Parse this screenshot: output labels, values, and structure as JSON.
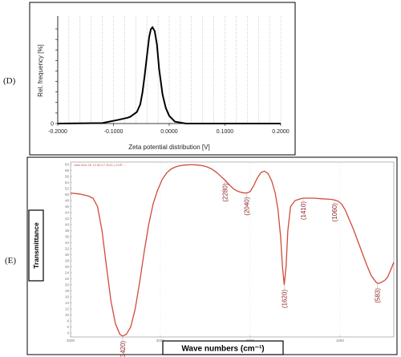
{
  "chart_data": [
    {
      "type": "line",
      "panel_label": "(D)",
      "xlabel": "Zeta potential distribution [V]",
      "ylabel": "Rel. frequency [%]",
      "xlim": [
        -0.2,
        0.2
      ],
      "ylim": [
        0,
        1
      ],
      "x_ticks": [
        "-0.2000",
        "-0.1000",
        "0.0000",
        "0.1000",
        "0.2000"
      ],
      "y_ticks": [
        "0",
        "",
        "",
        "",
        "",
        "",
        "",
        "",
        "",
        ""
      ],
      "grid": "vertical dotted",
      "series": [
        {
          "x": [
            -0.2,
            -0.12,
            -0.09,
            -0.075,
            -0.07,
            -0.058,
            -0.052,
            -0.048,
            -0.044,
            -0.04,
            -0.036,
            -0.033,
            -0.03,
            -0.026,
            -0.022,
            -0.018,
            -0.012,
            -0.006,
            0.0,
            0.01,
            0.03,
            0.2
          ],
          "y": [
            0.0,
            0.005,
            0.04,
            0.06,
            0.07,
            0.12,
            0.2,
            0.32,
            0.5,
            0.7,
            0.9,
            0.98,
            1.0,
            0.96,
            0.82,
            0.56,
            0.3,
            0.16,
            0.08,
            0.02,
            0.0,
            0.0
          ]
        }
      ]
    },
    {
      "type": "line",
      "panel_label": "(E)",
      "xlabel": "Wave numbers (cm⁻¹)",
      "ylabel": "Transmittance",
      "header": "User:Dec 25 12:30:17 2021 | CUP ...",
      "xlim": [
        4000,
        400
      ],
      "x_ticks": [
        "4000",
        "3000",
        "2000",
        "1000"
      ],
      "y_ticks": [
        "60",
        "58",
        "56",
        "54",
        "52",
        "50",
        "48",
        "46",
        "44",
        "42",
        "40",
        "38",
        "36",
        "34",
        "32",
        "30",
        "28",
        "26",
        "24",
        "22",
        "20",
        "18",
        "16",
        "14",
        "12",
        "10",
        "8",
        "6",
        "4"
      ],
      "grid": "dotted",
      "annotations": [
        "(3420)",
        "(2280)",
        "(2040)",
        "(1620)",
        "(1410)",
        "(1060)",
        "(583)"
      ],
      "series": [
        {
          "x": [
            4000,
            3900,
            3800,
            3750,
            3700,
            3650,
            3600,
            3550,
            3500,
            3450,
            3420,
            3380,
            3330,
            3280,
            3230,
            3180,
            3130,
            3080,
            3030,
            2980,
            2930,
            2880,
            2830,
            2780,
            2730,
            2680,
            2630,
            2580,
            2530,
            2480,
            2430,
            2380,
            2330,
            2280,
            2230,
            2180,
            2130,
            2080,
            2040,
            2000,
            1960,
            1920,
            1880,
            1840,
            1800,
            1760,
            1720,
            1690,
            1660,
            1640,
            1620,
            1600,
            1580,
            1550,
            1500,
            1450,
            1410,
            1350,
            1300,
            1250,
            1200,
            1150,
            1100,
            1060,
            1020,
            980,
            940,
            900,
            850,
            800,
            750,
            700,
            650,
            600,
            583,
            560,
            530,
            500,
            470,
            440,
            420,
            400
          ],
          "y": [
            50.5,
            50.2,
            49.5,
            48.8,
            46.0,
            38.0,
            26.0,
            14.5,
            7.0,
            3.5,
            3.0,
            3.5,
            6.0,
            12.0,
            21.0,
            31.0,
            40.0,
            47.0,
            51.5,
            55.0,
            57.2,
            58.5,
            59.2,
            59.6,
            59.8,
            59.9,
            59.9,
            59.8,
            59.6,
            59.2,
            58.5,
            57.5,
            56.2,
            54.8,
            53.2,
            51.8,
            51.0,
            50.6,
            50.5,
            51.0,
            53.0,
            55.5,
            57.3,
            57.8,
            57.0,
            54.5,
            50.5,
            45.0,
            36.0,
            26.0,
            20.0,
            26.0,
            38.0,
            46.0,
            48.0,
            48.5,
            48.8,
            48.8,
            48.8,
            48.7,
            48.6,
            48.5,
            48.4,
            48.2,
            47.8,
            46.8,
            44.8,
            42.0,
            38.5,
            34.5,
            30.5,
            26.5,
            23.0,
            21.0,
            20.5,
            20.5,
            21.0,
            21.5,
            22.5,
            24.5,
            26.0,
            27.5
          ]
        }
      ]
    }
  ]
}
